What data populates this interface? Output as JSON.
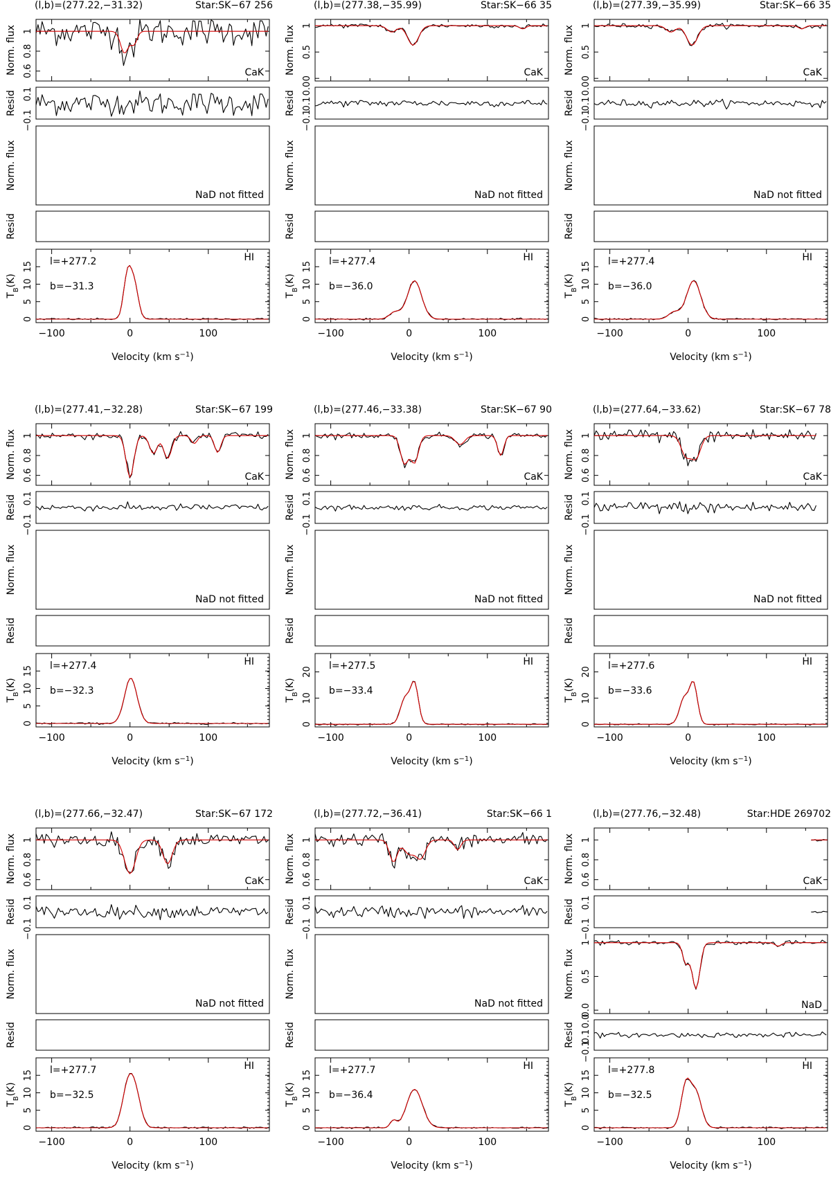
{
  "figure": {
    "xlabel": "Velocity (km s",
    "xlabel_sup": "−1",
    "xlabel_close": ")",
    "x_ticks": [
      "−100",
      "0",
      "100"
    ],
    "cak_ylabel": "Norm. flux",
    "resid_ylabel": "Resid",
    "nad_ylabel": "Norm. flux",
    "hi_ylabel_main": "T",
    "hi_ylabel_sub": "B",
    "hi_ylabel_tail": "(K)",
    "cak_label": "CaK",
    "nad_label": "NaD",
    "nad_not_fitted": "NaD not fitted",
    "hi_label": "HI",
    "colors": {
      "observed": "#000000",
      "fit": "#d40000"
    }
  },
  "chart_data": [
    {
      "type": "line",
      "header": "(l,b)=(277.22,−31.32)",
      "star": "Star:SK−67 256",
      "l_label": "l=+277.2",
      "b_label": "b=−31.3",
      "xlim": [
        -120,
        178
      ],
      "cak": {
        "yticks": [
          "1",
          "0.8",
          "0.6"
        ],
        "ylim": [
          0.5,
          1.12
        ],
        "noise": 0.07,
        "xrange": [
          -120,
          178
        ],
        "comps": [
          {
            "v": -7,
            "d": 0.22,
            "w": 5
          },
          {
            "v": 5,
            "d": 0.13,
            "w": 4
          }
        ]
      },
      "resid_yticks": [
        "0.1",
        "−0.1"
      ],
      "nad": {
        "fitted": false
      },
      "hi": {
        "yticks": [
          "0",
          "5",
          "10",
          "15"
        ],
        "ylim": [
          -1,
          20
        ],
        "comps": [
          {
            "v": -3,
            "a": 13,
            "w": 5
          },
          {
            "v": 6,
            "a": 9,
            "w": 5
          }
        ]
      }
    },
    {
      "type": "line",
      "header": "(l,b)=(277.38,−35.99)",
      "star": "Star:SK−66 35",
      "l_label": "l=+277.4",
      "b_label": "b=−36.0",
      "xlim": [
        -120,
        178
      ],
      "cak": {
        "yticks": [
          "1",
          "0.5",
          "0"
        ],
        "ylim": [
          -0.05,
          1.12
        ],
        "noise": 0.02,
        "xrange": [
          -120,
          178
        ],
        "comps": [
          {
            "v": -22,
            "d": 0.12,
            "w": 6
          },
          {
            "v": 5,
            "d": 0.37,
            "w": 7
          },
          {
            "v": 145,
            "d": 0.06,
            "w": 4
          }
        ]
      },
      "resid_yticks": [
        "0.0",
        "0.1",
        "−0.1"
      ],
      "nad": {
        "fitted": false
      },
      "hi": {
        "yticks": [
          "0",
          "5",
          "10",
          "15"
        ],
        "ylim": [
          -1,
          20
        ],
        "comps": [
          {
            "v": -18,
            "a": 2,
            "w": 7
          },
          {
            "v": 7,
            "a": 11,
            "w": 9
          }
        ]
      }
    },
    {
      "type": "line",
      "header": "(l,b)=(277.39,−35.99)",
      "star": "Star:SK−66 35",
      "l_label": "l=+277.4",
      "b_label": "b=−36.0",
      "xlim": [
        -120,
        178
      ],
      "cak": {
        "yticks": [
          "1",
          "0.5",
          "0"
        ],
        "ylim": [
          -0.05,
          1.12
        ],
        "noise": 0.02,
        "xrange": [
          -120,
          178
        ],
        "comps": [
          {
            "v": -22,
            "d": 0.12,
            "w": 6
          },
          {
            "v": 5,
            "d": 0.37,
            "w": 7
          },
          {
            "v": 145,
            "d": 0.06,
            "w": 4
          }
        ]
      },
      "resid_yticks": [
        "0.0",
        "0.1",
        "−0.1"
      ],
      "nad": {
        "fitted": false
      },
      "hi": {
        "yticks": [
          "0",
          "5",
          "10",
          "15"
        ],
        "ylim": [
          -1,
          20
        ],
        "comps": [
          {
            "v": -18,
            "a": 2,
            "w": 7
          },
          {
            "v": 7,
            "a": 11,
            "w": 9
          }
        ]
      }
    },
    {
      "type": "line",
      "header": "(l,b)=(277.41,−32.28)",
      "star": "Star:SK−67 199",
      "l_label": "l=+277.4",
      "b_label": "b=−32.3",
      "xlim": [
        -120,
        178
      ],
      "cak": {
        "yticks": [
          "1",
          "0.8",
          "0.6"
        ],
        "ylim": [
          0.5,
          1.12
        ],
        "noise": 0.02,
        "xrange": [
          -120,
          178
        ],
        "comps": [
          {
            "v": 0,
            "d": 0.42,
            "w": 5
          },
          {
            "v": 30,
            "d": 0.18,
            "w": 5
          },
          {
            "v": 48,
            "d": 0.23,
            "w": 5
          },
          {
            "v": 82,
            "d": 0.08,
            "w": 4
          },
          {
            "v": 112,
            "d": 0.17,
            "w": 4
          }
        ]
      },
      "resid_yticks": [
        "0.1",
        "−0.1"
      ],
      "nad": {
        "fitted": false
      },
      "hi": {
        "yticks": [
          "0",
          "5",
          "10",
          "15"
        ],
        "ylim": [
          -1,
          20
        ],
        "comps": [
          {
            "v": 1,
            "a": 13,
            "w": 8
          }
        ]
      }
    },
    {
      "type": "line",
      "header": "(l,b)=(277.46,−33.38)",
      "star": "Star:SK−67 90",
      "l_label": "l=+277.5",
      "b_label": "b=−33.4",
      "xlim": [
        -120,
        178
      ],
      "cak": {
        "yticks": [
          "1",
          "0.8",
          "0.6"
        ],
        "ylim": [
          0.5,
          1.12
        ],
        "noise": 0.015,
        "xrange": [
          -120,
          178
        ],
        "comps": [
          {
            "v": -6,
            "d": 0.28,
            "w": 5
          },
          {
            "v": 7,
            "d": 0.27,
            "w": 5
          },
          {
            "v": 65,
            "d": 0.09,
            "w": 6
          },
          {
            "v": 117,
            "d": 0.2,
            "w": 4
          }
        ]
      },
      "resid_yticks": [
        "0.1",
        "−0.1"
      ],
      "nad": {
        "fitted": false
      },
      "hi": {
        "yticks": [
          "0",
          "10",
          "20"
        ],
        "ylim": [
          -1,
          27
        ],
        "comps": [
          {
            "v": -5,
            "a": 10,
            "w": 6
          },
          {
            "v": 7,
            "a": 15,
            "w": 5
          }
        ]
      }
    },
    {
      "type": "line",
      "header": "(l,b)=(277.64,−33.62)",
      "star": "Star:SK−67 78",
      "l_label": "l=+277.6",
      "b_label": "b=−33.6",
      "xlim": [
        -120,
        178
      ],
      "cak": {
        "yticks": [
          "1",
          "0.8",
          "0.6"
        ],
        "ylim": [
          0.5,
          1.12
        ],
        "noise": 0.035,
        "xrange": [
          -120,
          165
        ],
        "comps": [
          {
            "v": -3,
            "d": 0.2,
            "w": 6
          },
          {
            "v": 10,
            "d": 0.22,
            "w": 6
          }
        ]
      },
      "resid_yticks": [
        "0.1",
        "−0.1"
      ],
      "nad": {
        "fitted": false
      },
      "hi": {
        "yticks": [
          "0",
          "10",
          "20"
        ],
        "ylim": [
          -1,
          27
        ],
        "comps": [
          {
            "v": -5,
            "a": 10,
            "w": 6
          },
          {
            "v": 7,
            "a": 15,
            "w": 5
          }
        ]
      }
    },
    {
      "type": "line",
      "header": "(l,b)=(277.66,−32.47)",
      "star": "Star:SK−67 172",
      "l_label": "l=+277.7",
      "b_label": "b=−32.5",
      "xlim": [
        -120,
        178
      ],
      "cak": {
        "yticks": [
          "1",
          "0.8",
          "0.6"
        ],
        "ylim": [
          0.5,
          1.12
        ],
        "noise": 0.035,
        "xrange": [
          -120,
          178
        ],
        "comps": [
          {
            "v": 0,
            "d": 0.34,
            "w": 7
          },
          {
            "v": 48,
            "d": 0.24,
            "w": 6
          }
        ]
      },
      "resid_yticks": [
        "0.1",
        "−0.1"
      ],
      "nad": {
        "fitted": false
      },
      "hi": {
        "yticks": [
          "0",
          "5",
          "10",
          "15"
        ],
        "ylim": [
          -1,
          20
        ],
        "comps": [
          {
            "v": -3,
            "a": 11,
            "w": 7
          },
          {
            "v": 7,
            "a": 9,
            "w": 7
          }
        ]
      }
    },
    {
      "type": "line",
      "header": "(l,b)=(277.72,−36.41)",
      "star": "Star:SK−66 1",
      "l_label": "l=+277.7",
      "b_label": "b=−36.4",
      "xlim": [
        -120,
        178
      ],
      "cak": {
        "yticks": [
          "1",
          "0.8",
          "0.6"
        ],
        "ylim": [
          0.5,
          1.12
        ],
        "noise": 0.035,
        "xrange": [
          -120,
          178
        ],
        "comps": [
          {
            "v": -20,
            "d": 0.22,
            "w": 5
          },
          {
            "v": 0,
            "d": 0.14,
            "w": 7
          },
          {
            "v": 15,
            "d": 0.18,
            "w": 6
          },
          {
            "v": 62,
            "d": 0.1,
            "w": 4
          }
        ]
      },
      "resid_yticks": [
        "0.1",
        "−0.1"
      ],
      "nad": {
        "fitted": false
      },
      "hi": {
        "yticks": [
          "0",
          "5",
          "10",
          "15"
        ],
        "ylim": [
          -1,
          20
        ],
        "comps": [
          {
            "v": -20,
            "a": 2,
            "w": 4
          },
          {
            "v": 7,
            "a": 11,
            "w": 10
          }
        ]
      }
    },
    {
      "type": "line",
      "header": "(l,b)=(277.76,−32.48)",
      "star": "Star:HDE 269702",
      "l_label": "l=+277.8",
      "b_label": "b=−32.5",
      "xlim": [
        -120,
        178
      ],
      "cak": {
        "yticks": [
          "1",
          "0.8",
          "0.6"
        ],
        "ylim": [
          0.5,
          1.12
        ],
        "noise": 0.005,
        "xrange": [
          157,
          178
        ],
        "comps": []
      },
      "resid_yticks": [
        "0.1",
        "−0.1"
      ],
      "nad": {
        "fitted": true,
        "yticks": [
          "1",
          "0.5",
          "0.0"
        ],
        "ylim": [
          -0.05,
          1.12
        ],
        "noise": 0.015,
        "xrange": [
          -120,
          178
        ],
        "comps": [
          {
            "v": -3,
            "d": 0.3,
            "w": 4
          },
          {
            "v": 10,
            "d": 0.68,
            "w": 5
          },
          {
            "v": 115,
            "d": 0.05,
            "w": 4
          }
        ],
        "resid_yticks": [
          "0.0",
          "0.1",
          "−0.1"
        ]
      },
      "hi": {
        "yticks": [
          "0",
          "5",
          "10",
          "15"
        ],
        "ylim": [
          -1,
          20
        ],
        "comps": [
          {
            "v": -3,
            "a": 12,
            "w": 6
          },
          {
            "v": 10,
            "a": 10,
            "w": 7
          }
        ]
      }
    }
  ]
}
